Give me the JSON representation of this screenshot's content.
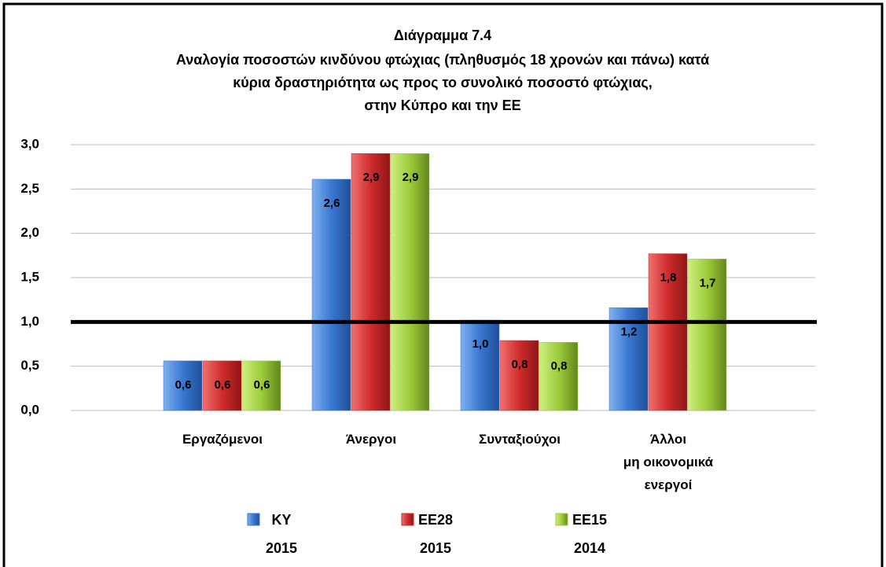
{
  "chart_data": {
    "type": "bar",
    "title": "Διάγραμμα 7.4",
    "subtitle": [
      "Αναλογία ποσοστών κινδύνου φτώχιας (πληθυσμός 18 χρονών και πάνω) κατά",
      "κύρια δραστηριότητα ως προς το συνολικό ποσοστό φτώχιας,",
      "στην Κύπρο και την ΕΕ"
    ],
    "categories": [
      [
        "Εργαζόμενοι"
      ],
      [
        "Άνεργοι"
      ],
      [
        "Συνταξιούχοι"
      ],
      [
        "Άλλοι",
        "μη οικονομικά",
        "ενεργοί"
      ]
    ],
    "series": [
      {
        "name": "ΚΥ 2015",
        "color": "#3a78d0",
        "values": [
          0.56,
          2.61,
          1.02,
          1.16
        ],
        "value_labels": [
          "0,6",
          "2,6",
          "1,0",
          "1,2"
        ]
      },
      {
        "name": "ΕΕ28 2015",
        "color": "#d02c2c",
        "values": [
          0.56,
          2.9,
          0.79,
          1.77
        ],
        "value_labels": [
          "0,6",
          "2,9",
          "0,8",
          "1,8"
        ]
      },
      {
        "name": "ΕΕ15 2014",
        "color": "#9ccc3a",
        "values": [
          0.56,
          2.9,
          0.77,
          1.71
        ],
        "value_labels": [
          "0,6",
          "2,9",
          "0,8",
          "1,7"
        ]
      }
    ],
    "ylim": [
      0,
      3
    ],
    "yticks": [
      {
        "value": 0,
        "label": "0,0"
      },
      {
        "value": 0.5,
        "label": "0,5"
      },
      {
        "value": 1,
        "label": "1,0"
      },
      {
        "value": 1.5,
        "label": "1,5"
      },
      {
        "value": 2,
        "label": "2,0"
      },
      {
        "value": 2.5,
        "label": "2,5"
      },
      {
        "value": 3,
        "label": "3,0"
      }
    ],
    "reference_line": 1,
    "grid": true
  }
}
